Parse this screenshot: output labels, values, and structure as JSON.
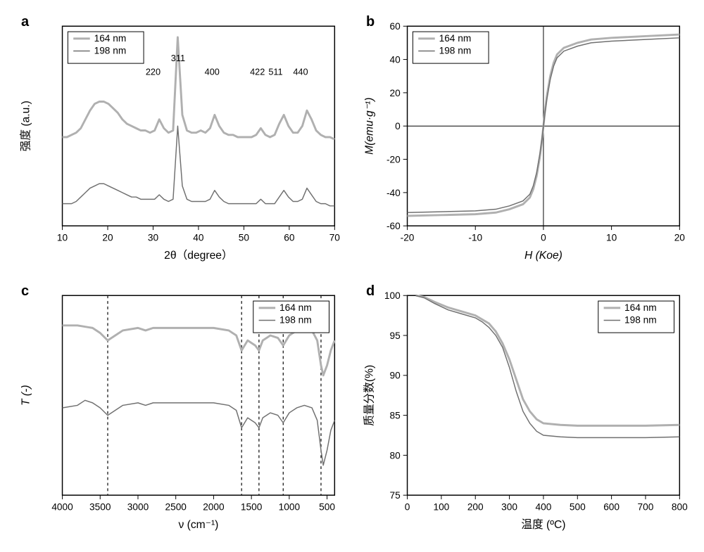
{
  "global": {
    "series1_label": "164 nm",
    "series2_label": "198 nm",
    "series1_color": "#b0b0b0",
    "series2_color": "#707070",
    "series1_width": 3,
    "series2_width": 1.5,
    "background": "#ffffff",
    "axis_color": "#000000",
    "label_fontsize": 16,
    "tick_fontsize": 14,
    "legend_fontsize": 14
  },
  "panel_a": {
    "label": "a",
    "type": "line",
    "xlabel": "2θ（degree）",
    "ylabel": "强度 (a.u.)",
    "xlim": [
      10,
      70
    ],
    "xticks": [
      10,
      20,
      30,
      40,
      50,
      60,
      70
    ],
    "legend_pos": "top-left",
    "peaks": [
      {
        "x": 30,
        "label": "220"
      },
      {
        "x": 35.5,
        "label": "311"
      },
      {
        "x": 43,
        "label": "400"
      },
      {
        "x": 53,
        "label": "422"
      },
      {
        "x": 57,
        "label": "511"
      },
      {
        "x": 62.5,
        "label": "440"
      }
    ],
    "series1_y": [
      50,
      50,
      51,
      52,
      54,
      58,
      62,
      65,
      66,
      66,
      65,
      63,
      61,
      58,
      56,
      55,
      54,
      53,
      53,
      52,
      53,
      58,
      54,
      52,
      53,
      95,
      60,
      53,
      52,
      52,
      53,
      52,
      54,
      60,
      55,
      52,
      51,
      51,
      50,
      50,
      50,
      50,
      51,
      54,
      51,
      50,
      51,
      56,
      60,
      55,
      52,
      52,
      55,
      62,
      58,
      53,
      51,
      50,
      50,
      49
    ],
    "series2_y": [
      20,
      20,
      20,
      21,
      23,
      25,
      27,
      28,
      29,
      29,
      28,
      27,
      26,
      25,
      24,
      23,
      23,
      22,
      22,
      22,
      22,
      24,
      22,
      21,
      22,
      55,
      28,
      22,
      21,
      21,
      21,
      21,
      22,
      26,
      23,
      21,
      20,
      20,
      20,
      20,
      20,
      20,
      20,
      22,
      20,
      20,
      20,
      23,
      26,
      23,
      21,
      21,
      22,
      27,
      24,
      21,
      20,
      20,
      19,
      19
    ]
  },
  "panel_b": {
    "label": "b",
    "type": "line",
    "xlabel": "H (Koe)",
    "ylabel": "M(emu·g⁻¹)",
    "xlim": [
      -20,
      20
    ],
    "ylim": [
      -60,
      60
    ],
    "xticks": [
      -20,
      -10,
      0,
      10,
      20
    ],
    "yticks": [
      -60,
      -40,
      -20,
      0,
      20,
      40,
      60
    ],
    "legend_pos": "top-left",
    "zero_lines": true,
    "series1_x": [
      -20,
      -15,
      -10,
      -7,
      -5,
      -3,
      -2,
      -1.5,
      -1,
      -0.5,
      -0.2,
      0,
      0.2,
      0.5,
      1,
      1.5,
      2,
      3,
      5,
      7,
      10,
      15,
      20
    ],
    "series1_y": [
      -54,
      -53.5,
      -53,
      -52,
      -50,
      -47,
      -43,
      -38,
      -30,
      -18,
      -8,
      0,
      8,
      18,
      30,
      38,
      43,
      47,
      50,
      52,
      53,
      54,
      55
    ],
    "series2_x": [
      -20,
      -15,
      -10,
      -7,
      -5,
      -3,
      -2,
      -1.5,
      -1,
      -0.5,
      -0.2,
      0,
      0.2,
      0.5,
      1,
      1.5,
      2,
      3,
      5,
      7,
      10,
      15,
      20
    ],
    "series2_y": [
      -52,
      -51.5,
      -51,
      -50,
      -48,
      -45,
      -41,
      -36,
      -28,
      -16,
      -7,
      0,
      7,
      16,
      28,
      36,
      41,
      45,
      48,
      50,
      51,
      52,
      53
    ]
  },
  "panel_c": {
    "label": "c",
    "type": "line",
    "xlabel": "ν  (cm⁻¹)",
    "ylabel": "T (-)",
    "xlim": [
      4000,
      400
    ],
    "xticks": [
      4000,
      3500,
      3000,
      2500,
      2000,
      1500,
      1000,
      500
    ],
    "legend_pos": "top-right",
    "dash_x": [
      3400,
      1630,
      1400,
      1080,
      580
    ],
    "series1_x": [
      4000,
      3800,
      3600,
      3500,
      3400,
      3300,
      3200,
      3000,
      2900,
      2800,
      2500,
      2200,
      2000,
      1800,
      1700,
      1630,
      1550,
      1450,
      1400,
      1350,
      1250,
      1150,
      1080,
      1000,
      900,
      800,
      700,
      630,
      580,
      550,
      500,
      450,
      400
    ],
    "series1_y": [
      68,
      68,
      67,
      65,
      62,
      64,
      66,
      67,
      66,
      67,
      67,
      67,
      67,
      66,
      64,
      58,
      62,
      60,
      58,
      62,
      64,
      63,
      60,
      64,
      66,
      67,
      66,
      62,
      52,
      48,
      52,
      58,
      62
    ],
    "series2_x": [
      4000,
      3800,
      3700,
      3600,
      3500,
      3400,
      3300,
      3200,
      3000,
      2900,
      2800,
      2500,
      2200,
      2000,
      1800,
      1700,
      1630,
      1550,
      1450,
      1400,
      1350,
      1250,
      1150,
      1080,
      1000,
      900,
      800,
      700,
      630,
      580,
      550,
      500,
      450,
      400
    ],
    "series2_y": [
      35,
      36,
      38,
      37,
      35,
      32,
      34,
      36,
      37,
      36,
      37,
      37,
      37,
      37,
      36,
      34,
      27,
      31,
      29,
      27,
      31,
      33,
      32,
      29,
      33,
      35,
      36,
      35,
      30,
      18,
      12,
      18,
      26,
      30
    ]
  },
  "panel_d": {
    "label": "d",
    "type": "line",
    "xlabel": "温度 (ºC)",
    "ylabel": "质量分数(%)",
    "xlim": [
      0,
      800
    ],
    "ylim": [
      75,
      100
    ],
    "xticks": [
      0,
      100,
      200,
      300,
      400,
      500,
      600,
      700,
      800
    ],
    "yticks": [
      75,
      80,
      85,
      90,
      95,
      100
    ],
    "legend_pos": "top-right",
    "series1_x": [
      25,
      50,
      80,
      120,
      160,
      200,
      220,
      240,
      260,
      280,
      300,
      320,
      340,
      360,
      380,
      400,
      450,
      500,
      600,
      700,
      800
    ],
    "series1_y": [
      100,
      99.8,
      99.2,
      98.5,
      98,
      97.5,
      97,
      96.5,
      95.5,
      94,
      92,
      89.5,
      87,
      85.5,
      84.5,
      84,
      83.8,
      83.7,
      83.7,
      83.7,
      83.8
    ],
    "series2_x": [
      25,
      50,
      80,
      120,
      160,
      200,
      220,
      240,
      260,
      280,
      300,
      320,
      340,
      360,
      380,
      400,
      450,
      500,
      600,
      700,
      800
    ],
    "series2_y": [
      100,
      99.7,
      99,
      98.2,
      97.7,
      97.2,
      96.7,
      96,
      95,
      93.5,
      91,
      88,
      85.5,
      84,
      83,
      82.5,
      82.3,
      82.2,
      82.2,
      82.2,
      82.3
    ]
  }
}
